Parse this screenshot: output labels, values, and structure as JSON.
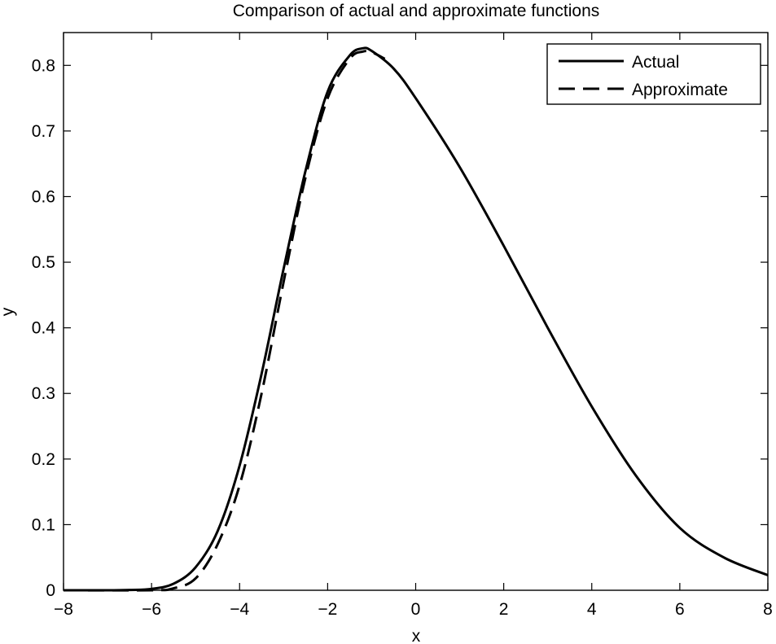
{
  "chart_data": {
    "type": "line",
    "title": "Comparison of actual and approximate functions",
    "xlabel": "x",
    "ylabel": "y",
    "xlim": [
      -8,
      8
    ],
    "ylim": [
      0,
      0.85
    ],
    "xticks": [
      -8,
      -6,
      -4,
      -2,
      0,
      2,
      4,
      6,
      8
    ],
    "xtick_labels": [
      "−8",
      "−6",
      "−4",
      "−2",
      "0",
      "2",
      "4",
      "6",
      "8"
    ],
    "yticks": [
      0,
      0.1,
      0.2,
      0.3,
      0.4,
      0.5,
      0.6,
      0.7,
      0.8
    ],
    "ytick_labels": [
      "0",
      "0.1",
      "0.2",
      "0.3",
      "0.4",
      "0.5",
      "0.6",
      "0.7",
      "0.8"
    ],
    "grid": false,
    "legend_position": "top-right",
    "series": [
      {
        "name": "Actual",
        "style": "solid",
        "color": "#000000",
        "x": [
          -8,
          -7,
          -6.5,
          -6,
          -5.5,
          -5,
          -4.5,
          -4,
          -3.5,
          -3,
          -2.5,
          -2,
          -1.5,
          -1.2,
          -1,
          -0.5,
          0,
          1,
          2,
          3,
          4,
          5,
          6,
          7,
          8
        ],
        "y": [
          0,
          0,
          0.0005,
          0.002,
          0.01,
          0.035,
          0.09,
          0.19,
          0.33,
          0.49,
          0.64,
          0.76,
          0.815,
          0.826,
          0.822,
          0.795,
          0.75,
          0.645,
          0.525,
          0.4,
          0.28,
          0.175,
          0.095,
          0.05,
          0.023
        ]
      },
      {
        "name": "Approximate",
        "style": "dashed",
        "color": "#000000",
        "x": [
          -8,
          -6,
          -5.5,
          -5,
          -4.5,
          -4,
          -3.5,
          -3,
          -2.5,
          -2,
          -1.5,
          -1.2,
          -1,
          -0.7
        ],
        "y": [
          0,
          0,
          0.003,
          0.018,
          0.07,
          0.16,
          0.3,
          0.47,
          0.63,
          0.75,
          0.81,
          0.821,
          0.82,
          0.81
        ]
      }
    ]
  }
}
